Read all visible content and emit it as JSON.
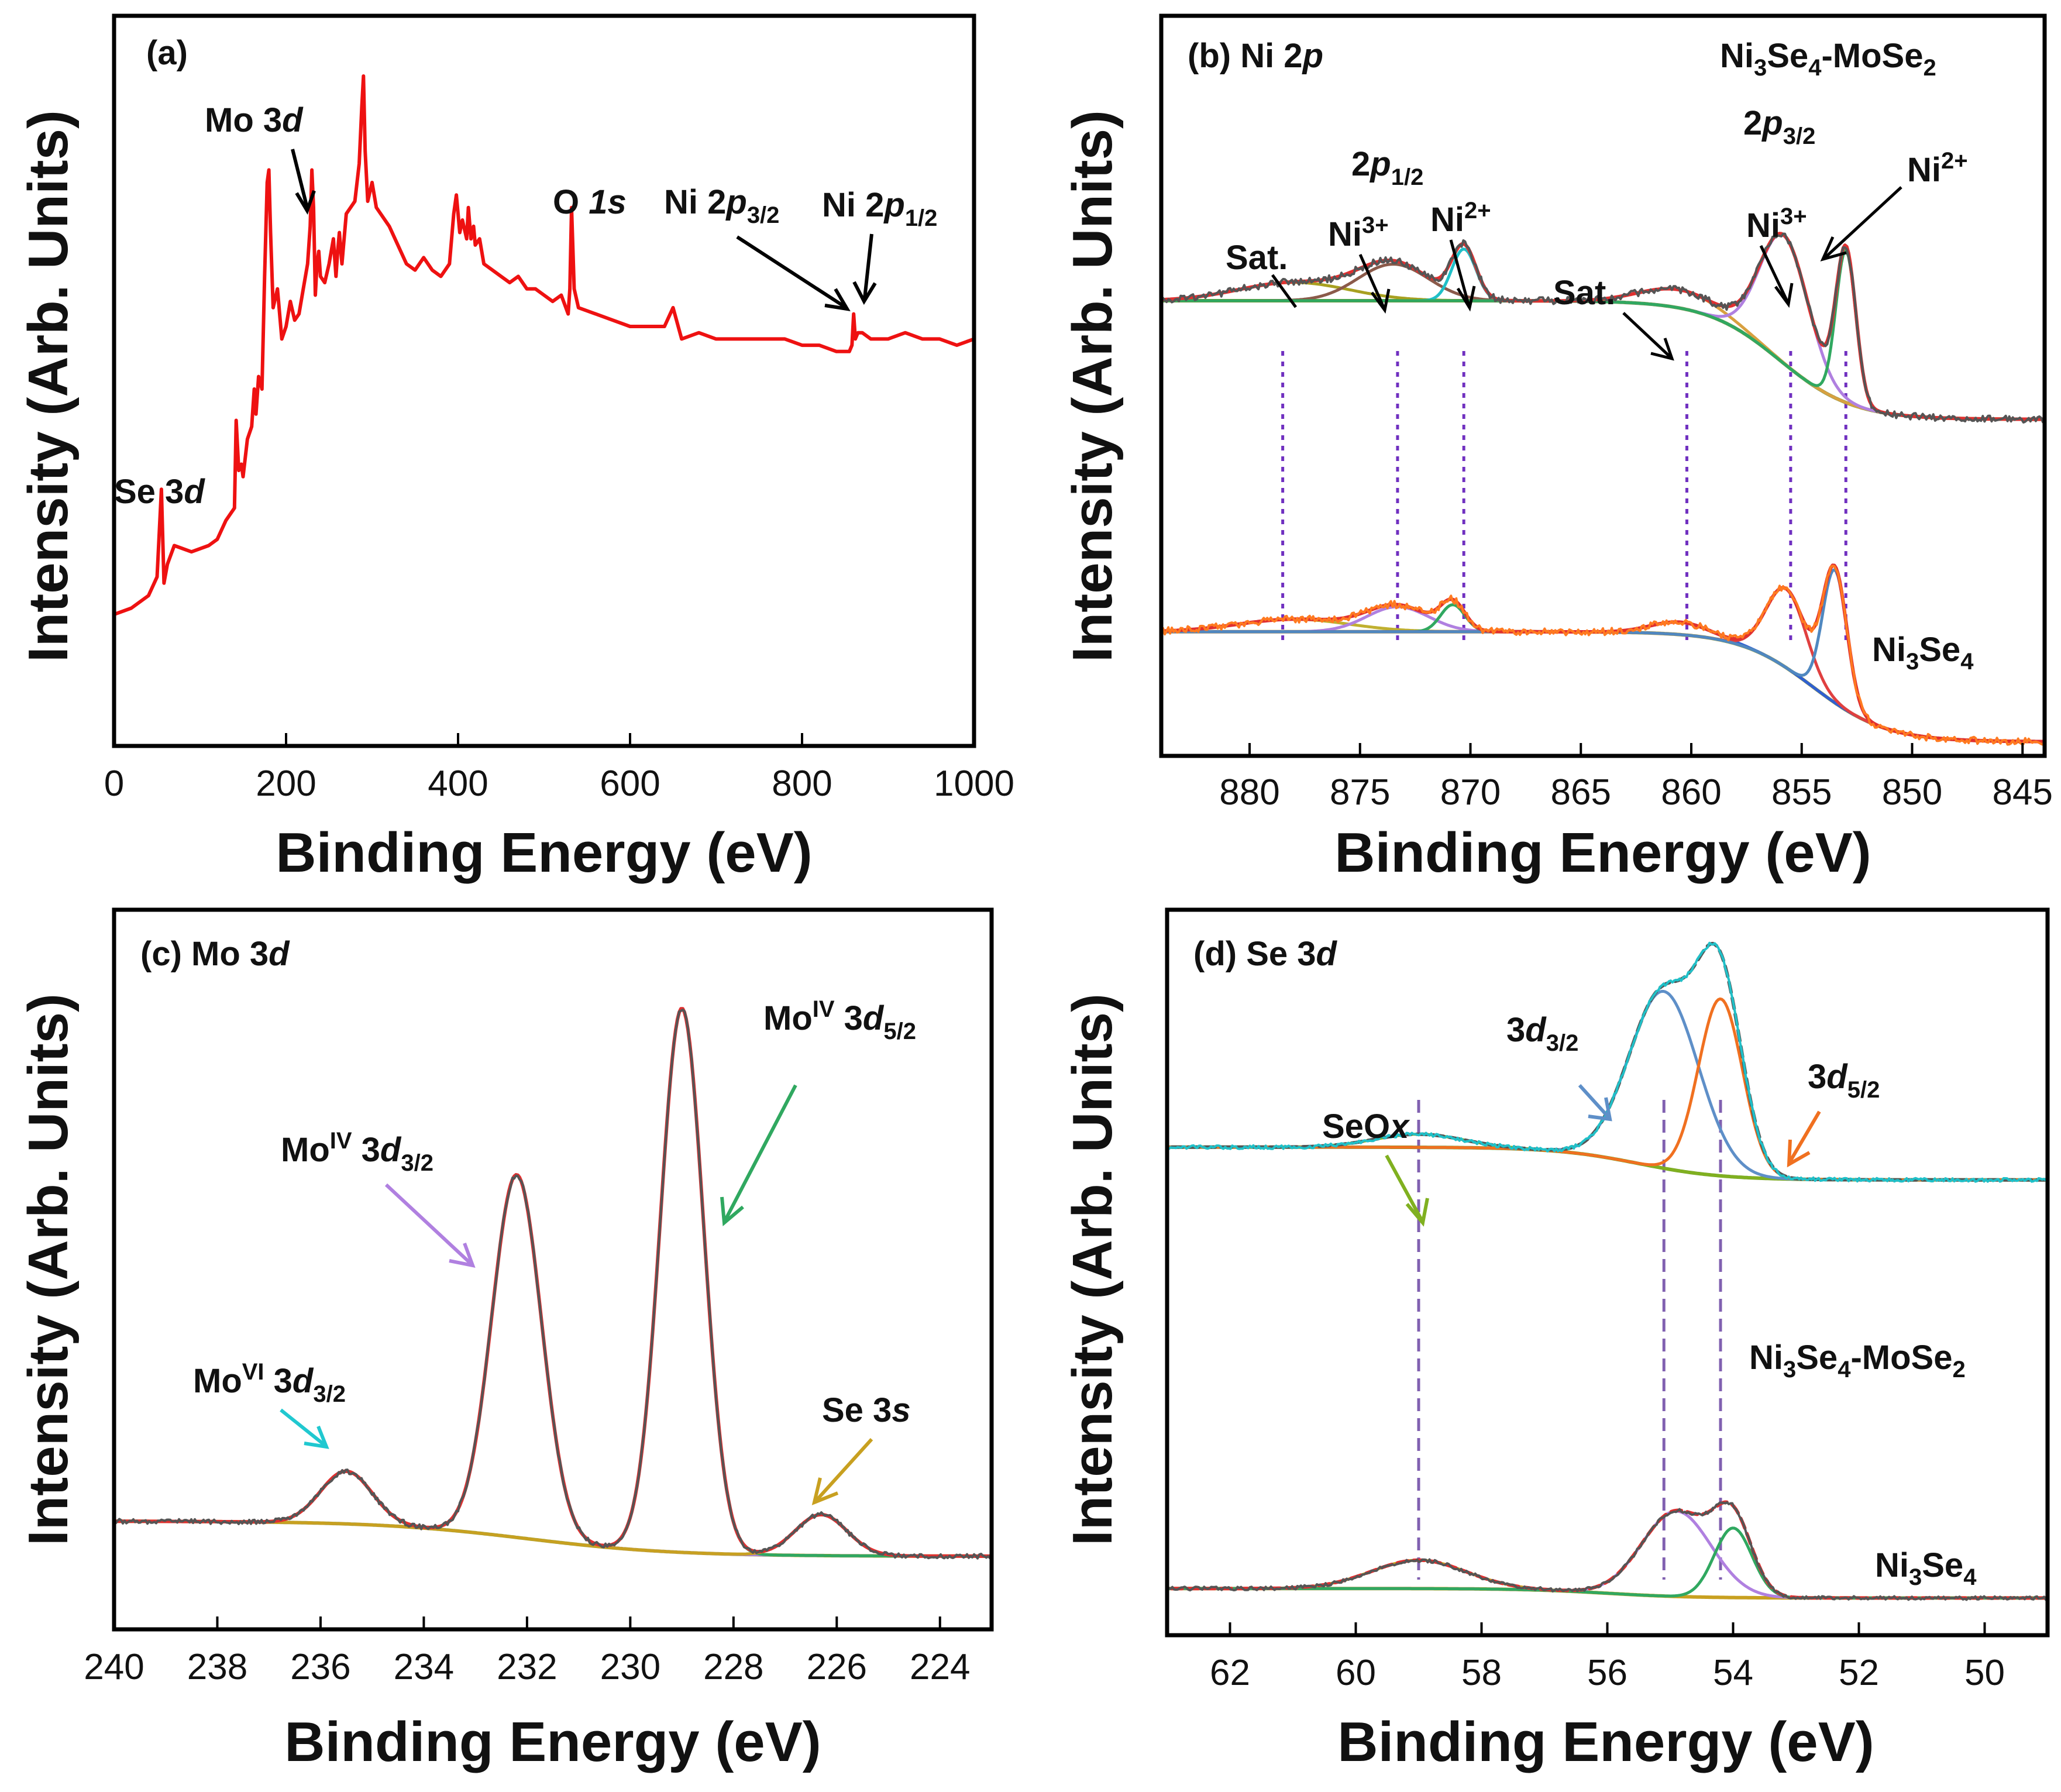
{
  "chart_data": [
    {
      "id": "a",
      "type": "line",
      "panel_label": "(a)",
      "xlabel": "Binding Energy (eV)",
      "ylabel": "Intensity (Arb. Units)",
      "xlim": [
        0,
        1000
      ],
      "x_reversed": false,
      "xticks": [
        0,
        200,
        400,
        600,
        800,
        1000
      ],
      "annotations": {
        "se3d": {
          "pre": "Se 3",
          "it": "d"
        },
        "mo3d": {
          "pre": "Mo 3",
          "it": "d"
        },
        "o1s": {
          "pre": "O ",
          "it": "1s"
        },
        "ni2p32": {
          "pre": "Ni 2",
          "it": "p",
          "sub": "3/2"
        },
        "ni2p12": {
          "pre": "Ni 2",
          "it": "p",
          "sub": "1/2"
        }
      },
      "series": [
        {
          "name": "survey",
          "color": "#ee1111",
          "x": [
            0,
            20,
            40,
            50,
            55,
            58,
            62,
            70,
            90,
            110,
            120,
            130,
            140,
            142,
            145,
            148,
            150,
            155,
            160,
            163,
            165,
            168,
            172,
            175,
            178,
            180,
            182,
            185,
            190,
            195,
            200,
            205,
            210,
            215,
            220,
            225,
            228,
            230,
            232,
            234,
            236,
            238,
            240,
            245,
            250,
            255,
            258,
            260,
            262,
            265,
            270,
            275,
            280,
            285,
            288,
            290,
            292,
            295,
            300,
            305,
            310,
            320,
            330,
            340,
            350,
            360,
            370,
            380,
            390,
            395,
            398,
            400,
            402,
            405,
            410,
            412,
            415,
            418,
            420,
            425,
            430,
            440,
            450,
            460,
            470,
            480,
            490,
            500,
            510,
            520,
            528,
            530,
            532,
            535,
            540,
            560,
            580,
            600,
            620,
            640,
            650,
            660,
            680,
            700,
            720,
            740,
            760,
            780,
            800,
            820,
            840,
            850,
            855,
            858,
            860,
            862,
            865,
            870,
            880,
            900,
            920,
            940,
            960,
            980,
            1000
          ],
          "y": [
            0.14,
            0.15,
            0.17,
            0.2,
            0.34,
            0.19,
            0.22,
            0.25,
            0.24,
            0.25,
            0.26,
            0.29,
            0.31,
            0.45,
            0.37,
            0.38,
            0.36,
            0.42,
            0.44,
            0.5,
            0.46,
            0.52,
            0.5,
            0.68,
            0.83,
            0.85,
            0.75,
            0.63,
            0.66,
            0.58,
            0.6,
            0.64,
            0.61,
            0.62,
            0.66,
            0.7,
            0.76,
            0.85,
            0.79,
            0.65,
            0.7,
            0.72,
            0.68,
            0.67,
            0.7,
            0.74,
            0.68,
            0.72,
            0.75,
            0.7,
            0.78,
            0.79,
            0.8,
            0.86,
            0.95,
            1.0,
            0.88,
            0.8,
            0.83,
            0.79,
            0.78,
            0.76,
            0.73,
            0.7,
            0.69,
            0.71,
            0.69,
            0.68,
            0.7,
            0.78,
            0.81,
            0.78,
            0.75,
            0.77,
            0.74,
            0.79,
            0.74,
            0.76,
            0.73,
            0.74,
            0.7,
            0.69,
            0.68,
            0.67,
            0.68,
            0.66,
            0.66,
            0.65,
            0.64,
            0.65,
            0.62,
            0.66,
            0.79,
            0.66,
            0.63,
            0.62,
            0.61,
            0.6,
            0.6,
            0.6,
            0.63,
            0.58,
            0.59,
            0.58,
            0.58,
            0.58,
            0.58,
            0.58,
            0.57,
            0.57,
            0.56,
            0.56,
            0.56,
            0.57,
            0.62,
            0.58,
            0.59,
            0.59,
            0.58,
            0.58,
            0.59,
            0.58,
            0.58,
            0.57,
            0.58
          ]
        }
      ]
    },
    {
      "id": "b",
      "type": "line",
      "panel_label": "(b)",
      "title": {
        "pre": "Ni 2",
        "it": "p"
      },
      "xlabel": "Binding Energy (eV)",
      "ylabel": "Intensity (Arb. Units)",
      "xlim": [
        884,
        844
      ],
      "x_reversed": true,
      "xticks": [
        880,
        875,
        870,
        865,
        860,
        855,
        850,
        845
      ],
      "sample_labels": {
        "top": "Ni3Se4-MoSe2",
        "bottom": "Ni3Se4"
      },
      "annotations": {
        "p12": {
          "pre": "2",
          "it": "p",
          "sub": "1/2"
        },
        "p32": {
          "pre": "2",
          "it": "p",
          "sub": "3/2"
        },
        "sat": "Sat.",
        "ni3": "Ni",
        "ni3_sup": "3+",
        "ni2": "Ni",
        "ni2_sup": "2+"
      },
      "reference_lines_eV": [
        878.5,
        873.3,
        870.3,
        860.2,
        855.5,
        853.0
      ],
      "upper": {
        "baseline": {
          "start": 0.55,
          "end": 0.16,
          "step_at": 856
        },
        "peaks": [
          {
            "name": "Sat.",
            "center": 878.0,
            "height": 0.06,
            "width": 2.5,
            "color": "#a8a020"
          },
          {
            "name": "Ni3+ 2p1/2",
            "center": 873.5,
            "height": 0.12,
            "width": 1.6,
            "color": "#8b5a4a"
          },
          {
            "name": "Ni2+ 2p1/2",
            "center": 870.3,
            "height": 0.17,
            "width": 0.55,
            "color": "#20c0c8"
          },
          {
            "name": "Sat.",
            "center": 860.5,
            "height": 0.06,
            "width": 1.8,
            "color": "#d8a040"
          },
          {
            "name": "Ni3+ 2p3/2",
            "center": 855.8,
            "height": 0.42,
            "width": 1.1,
            "color": "#b080e0"
          },
          {
            "name": "Ni2+ 2p3/2",
            "center": 853.0,
            "height": 0.5,
            "width": 0.45,
            "color": "#30a860"
          }
        ]
      },
      "lower": {
        "baseline": {
          "start": 0.55,
          "end": 0.02,
          "step_at": 854.5
        },
        "peaks": [
          {
            "name": "Sat.",
            "center": 878.0,
            "height": 0.06,
            "width": 2.5,
            "color": "#c0b030"
          },
          {
            "name": "Ni3+ 2p1/2",
            "center": 873.3,
            "height": 0.12,
            "width": 1.4,
            "color": "#b080e0"
          },
          {
            "name": "Ni2+ 2p1/2",
            "center": 870.8,
            "height": 0.13,
            "width": 0.55,
            "color": "#30a860"
          },
          {
            "name": "Sat.",
            "center": 860.5,
            "height": 0.06,
            "width": 1.3,
            "color": "#3060d0"
          },
          {
            "name": "Ni3+ 2p3/2",
            "center": 855.7,
            "height": 0.38,
            "width": 0.9,
            "color": "#e04040"
          },
          {
            "name": "Ni2+ 2p3/2",
            "center": 853.5,
            "height": 0.64,
            "width": 0.55,
            "color": "#5088c0"
          }
        ]
      }
    },
    {
      "id": "c",
      "type": "line",
      "panel_label": "(c)",
      "title": {
        "pre": "Mo 3",
        "it": "d"
      },
      "xlabel": "Binding Energy (eV)",
      "ylabel": "Intensity (Arb. Units)",
      "xlim": [
        240,
        223
      ],
      "x_reversed": true,
      "xticks": [
        240,
        238,
        236,
        234,
        232,
        230,
        228,
        226,
        224
      ],
      "annotations": {
        "mo6_32": {
          "pre": "Mo",
          "sup": "VI",
          "mid": " 3",
          "it": "d",
          "sub": "3/2"
        },
        "mo4_32": {
          "pre": "Mo",
          "sup": "IV",
          "mid": " 3",
          "it": "d",
          "sub": "3/2"
        },
        "mo4_52": {
          "pre": "Mo",
          "sup": "IV",
          "mid": " 3",
          "it": "d",
          "sub": "5/2"
        },
        "se3s": {
          "pre": "Se 3",
          "it": "s"
        }
      },
      "baseline": {
        "start": 0.1,
        "end": 0.04
      },
      "peaks": [
        {
          "name": "MoVI 3d3/2",
          "center": 235.5,
          "height": 0.09,
          "width": 0.5,
          "color": "#20c8d0"
        },
        {
          "name": "MoIV 3d3/2",
          "center": 232.2,
          "height": 0.62,
          "width": 0.48,
          "color": "#b080e0"
        },
        {
          "name": "MoIV 3d5/2",
          "center": 229.0,
          "height": 0.93,
          "width": 0.42,
          "color": "#30a860"
        },
        {
          "name": "Se 3s",
          "center": 226.3,
          "height": 0.07,
          "width": 0.5,
          "color": "#c8a020"
        }
      ]
    },
    {
      "id": "d",
      "type": "line",
      "panel_label": "(d)",
      "title": {
        "pre": "Se 3",
        "it": "d"
      },
      "xlabel": "Binding Energy (eV)",
      "ylabel": "Intensity (Arb. Units)",
      "xlim": [
        63,
        49
      ],
      "x_reversed": true,
      "xticks": [
        62,
        60,
        58,
        56,
        54,
        52,
        50
      ],
      "sample_labels": {
        "top": "Ni3Se4-MoSe2",
        "bottom": "Ni3Se4"
      },
      "annotations": {
        "seox": {
          "pre": "SeO",
          "it": "x"
        },
        "d32": {
          "pre": "3",
          "it": "d",
          "sub": "3/2"
        },
        "d52": {
          "pre": "3",
          "it": "d",
          "sub": "5/2"
        }
      },
      "reference_lines_eV": [
        59.0,
        55.1,
        54.2
      ],
      "upper": {
        "baseline": {
          "start": 0.66,
          "end": 0.61,
          "step_at": 55.5
        },
        "peaks": [
          {
            "name": "SeOx",
            "center": 59.0,
            "height": 0.02,
            "width": 0.7,
            "color": "#80b020"
          },
          {
            "name": "3d3/2",
            "center": 55.1,
            "height": 0.27,
            "width": 0.55,
            "color": "#5e8fc8"
          },
          {
            "name": "3d5/2",
            "center": 54.2,
            "height": 0.27,
            "width": 0.35,
            "color": "#f07020"
          }
        ]
      },
      "lower": {
        "baseline": {
          "start": 0.12,
          "end": 0.09,
          "step_at": 56
        },
        "peaks": [
          {
            "name": "SeOx",
            "center": 59.0,
            "height": 0.09,
            "width": 0.75,
            "color": "#c8a020"
          },
          {
            "name": "3d3/2",
            "center": 54.9,
            "height": 0.27,
            "width": 0.55,
            "color": "#b080e0"
          },
          {
            "name": "3d5/2",
            "center": 54.0,
            "height": 0.22,
            "width": 0.3,
            "color": "#30a860"
          }
        ]
      }
    }
  ]
}
